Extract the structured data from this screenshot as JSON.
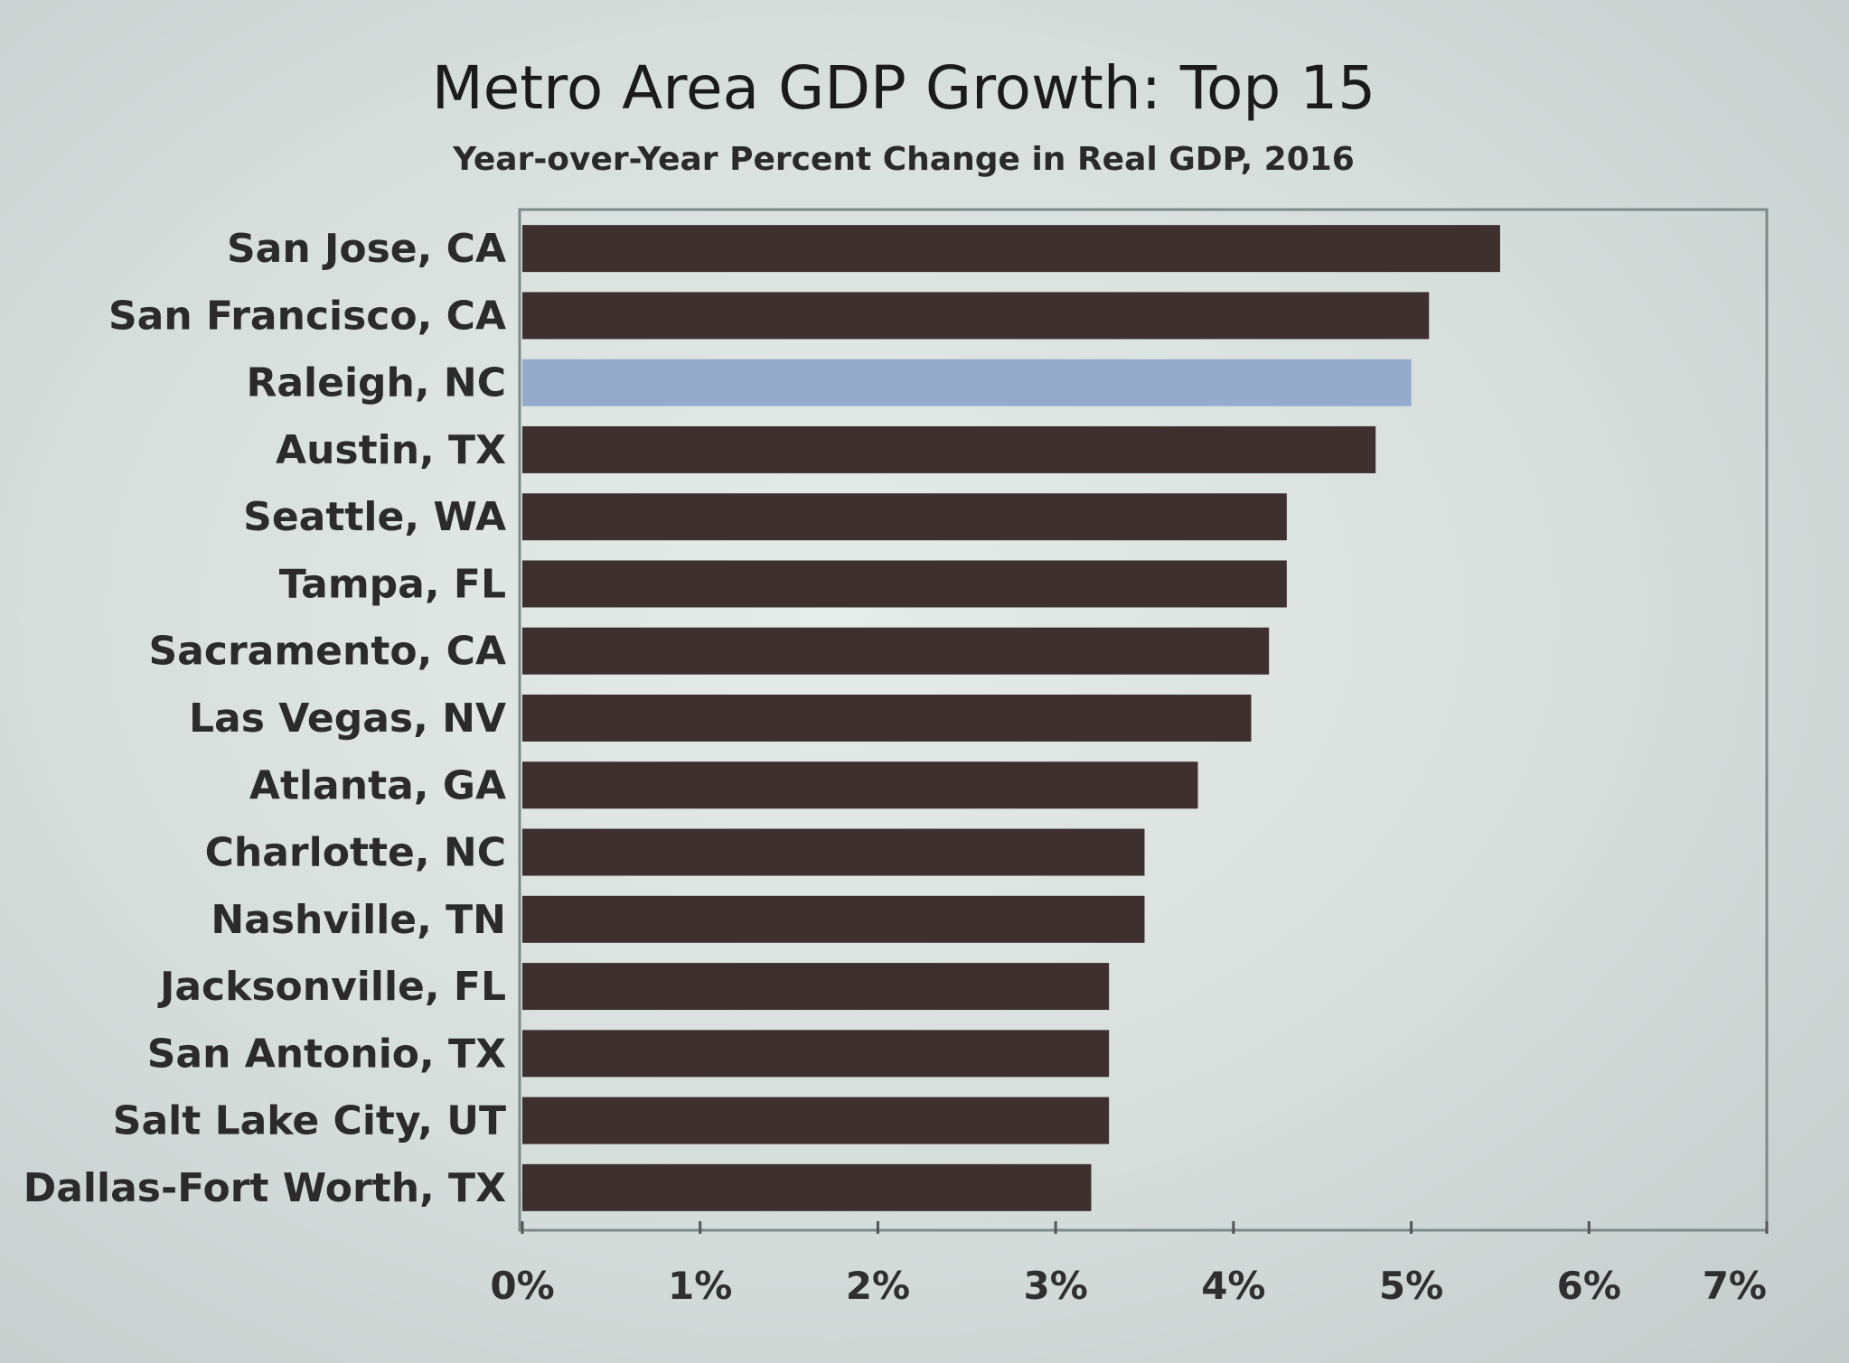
{
  "chart_data": {
    "type": "bar",
    "orientation": "horizontal",
    "title": "Metro Area GDP Growth: Top 15",
    "subtitle": "Year-over-Year Percent Change in Real GDP, 2016",
    "categories": [
      "San Jose, CA",
      "San Francisco, CA",
      "Raleigh, NC",
      "Austin, TX",
      "Seattle, WA",
      "Tampa, FL",
      "Sacramento, CA",
      "Las Vegas, NV",
      "Atlanta, GA",
      "Charlotte, NC",
      "Nashville, TN",
      "Jacksonville, FL",
      "San Antonio, TX",
      "Salt Lake City, UT",
      "Dallas-Fort Worth, TX"
    ],
    "values": [
      5.5,
      5.1,
      5.0,
      4.8,
      4.3,
      4.3,
      4.2,
      4.1,
      3.8,
      3.5,
      3.5,
      3.3,
      3.3,
      3.3,
      3.2
    ],
    "highlight": "Raleigh, NC",
    "xlim": [
      0,
      7
    ],
    "xticks": [
      "0%",
      "1%",
      "2%",
      "3%",
      "4%",
      "5%",
      "6%",
      "7%"
    ],
    "grid": false,
    "colors": {
      "bar": "#3d302e",
      "highlight": "#94abcc"
    }
  }
}
